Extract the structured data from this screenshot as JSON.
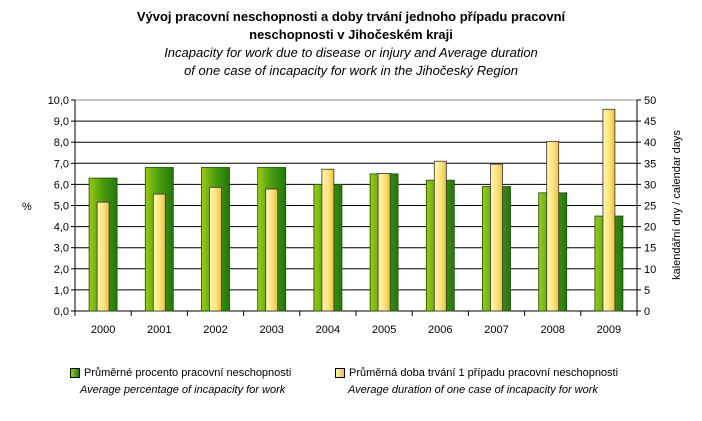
{
  "chart_data": {
    "type": "bar",
    "title_cz_line1": "Vývoj pracovní neschopnosti a doby trvání jednoho případu pracovní",
    "title_cz_line2": "neschopnosti v Jihočeském kraji",
    "title_en_line1": "Incapacity for work due to disease or injury and Average duration",
    "title_en_line2": "of one case of incapacity for work in the Jihočeský Region",
    "categories": [
      "2000",
      "2001",
      "2002",
      "2003",
      "2004",
      "2005",
      "2006",
      "2007",
      "2008",
      "2009"
    ],
    "ylabel_left": "%",
    "ylabel_right": "kalendářní dny / calendar days",
    "ylim_left": [
      0,
      10
    ],
    "ylim_right": [
      0,
      50
    ],
    "yticks_left": [
      "0,0",
      "1,0",
      "2,0",
      "3,0",
      "4,0",
      "5,0",
      "6,0",
      "7,0",
      "8,0",
      "9,0",
      "10,0"
    ],
    "yticks_right": [
      "0",
      "5",
      "10",
      "15",
      "20",
      "25",
      "30",
      "35",
      "40",
      "45",
      "50"
    ],
    "grid": true,
    "series": [
      {
        "name": "Průměrné procento pracovní neschopnosti",
        "name_en": "Average percentage of incapacity for work",
        "axis": "left",
        "color": "#4a9a10",
        "values": [
          6.3,
          6.8,
          6.8,
          6.8,
          6.0,
          6.5,
          6.2,
          5.9,
          5.6,
          4.5
        ]
      },
      {
        "name": "Průměrná doba trvání 1 případu pracovní neschopnosti",
        "name_en": "Average duration of one case of incapacity for work",
        "axis": "right",
        "color": "#ffe680",
        "values": [
          25.8,
          27.7,
          29.3,
          28.9,
          33.6,
          32.6,
          35.5,
          34.8,
          40.2,
          47.8
        ]
      }
    ],
    "legend_position": "bottom"
  }
}
